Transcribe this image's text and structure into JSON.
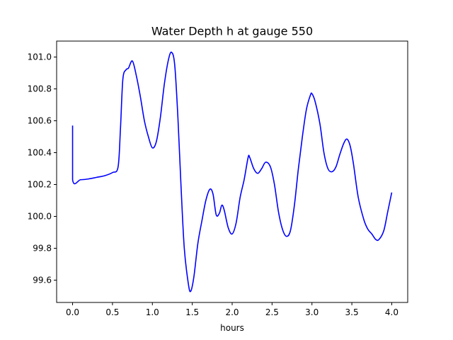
{
  "chart_data": {
    "type": "line",
    "title": "Water Depth h at gauge 550",
    "xlabel": "hours",
    "ylabel": "",
    "xlim": [
      -0.2,
      4.2
    ],
    "ylim": [
      99.46,
      101.1
    ],
    "xticks": [
      0.0,
      0.5,
      1.0,
      1.5,
      2.0,
      2.5,
      3.0,
      3.5,
      4.0
    ],
    "xtick_labels": [
      "0.0",
      "0.5",
      "1.0",
      "1.5",
      "2.0",
      "2.5",
      "3.0",
      "3.5",
      "4.0"
    ],
    "yticks": [
      99.6,
      99.8,
      100.0,
      100.2,
      100.4,
      100.6,
      100.8,
      101.0
    ],
    "ytick_labels": [
      "99.6",
      "99.8",
      "100.0",
      "100.2",
      "100.4",
      "100.6",
      "100.8",
      "101.0"
    ],
    "grid": false,
    "series": [
      {
        "color": "#0000ff",
        "points": [
          [
            0.0,
            100.57
          ],
          [
            0.0,
            100.23
          ],
          [
            0.1,
            100.23
          ],
          [
            0.2,
            100.235
          ],
          [
            0.3,
            100.245
          ],
          [
            0.4,
            100.255
          ],
          [
            0.5,
            100.275
          ],
          [
            0.57,
            100.31
          ],
          [
            0.6,
            100.55
          ],
          [
            0.63,
            100.86
          ],
          [
            0.67,
            100.92
          ],
          [
            0.7,
            100.93
          ],
          [
            0.75,
            100.975
          ],
          [
            0.8,
            100.88
          ],
          [
            0.85,
            100.75
          ],
          [
            0.9,
            100.6
          ],
          [
            0.95,
            100.5
          ],
          [
            1.0,
            100.43
          ],
          [
            1.05,
            100.47
          ],
          [
            1.1,
            100.62
          ],
          [
            1.15,
            100.83
          ],
          [
            1.2,
            100.98
          ],
          [
            1.24,
            101.03
          ],
          [
            1.28,
            100.95
          ],
          [
            1.32,
            100.62
          ],
          [
            1.36,
            100.18
          ],
          [
            1.4,
            99.8
          ],
          [
            1.45,
            99.58
          ],
          [
            1.48,
            99.53
          ],
          [
            1.52,
            99.62
          ],
          [
            1.57,
            99.83
          ],
          [
            1.62,
            99.97
          ],
          [
            1.67,
            100.1
          ],
          [
            1.72,
            100.17
          ],
          [
            1.76,
            100.14
          ],
          [
            1.8,
            100.01
          ],
          [
            1.84,
            100.02
          ],
          [
            1.87,
            100.07
          ],
          [
            1.9,
            100.04
          ],
          [
            1.95,
            99.93
          ],
          [
            2.0,
            99.89
          ],
          [
            2.05,
            99.96
          ],
          [
            2.1,
            100.12
          ],
          [
            2.15,
            100.23
          ],
          [
            2.2,
            100.37
          ],
          [
            2.22,
            100.37
          ],
          [
            2.27,
            100.3
          ],
          [
            2.32,
            100.27
          ],
          [
            2.37,
            100.3
          ],
          [
            2.42,
            100.34
          ],
          [
            2.48,
            100.31
          ],
          [
            2.53,
            100.2
          ],
          [
            2.58,
            100.03
          ],
          [
            2.63,
            99.92
          ],
          [
            2.68,
            99.875
          ],
          [
            2.73,
            99.91
          ],
          [
            2.78,
            100.07
          ],
          [
            2.83,
            100.3
          ],
          [
            2.88,
            100.5
          ],
          [
            2.93,
            100.67
          ],
          [
            2.98,
            100.76
          ],
          [
            3.0,
            100.77
          ],
          [
            3.04,
            100.72
          ],
          [
            3.1,
            100.58
          ],
          [
            3.15,
            100.4
          ],
          [
            3.2,
            100.3
          ],
          [
            3.25,
            100.28
          ],
          [
            3.3,
            100.31
          ],
          [
            3.35,
            100.39
          ],
          [
            3.4,
            100.46
          ],
          [
            3.44,
            100.485
          ],
          [
            3.48,
            100.44
          ],
          [
            3.52,
            100.33
          ],
          [
            3.58,
            100.12
          ],
          [
            3.65,
            99.98
          ],
          [
            3.7,
            99.92
          ],
          [
            3.75,
            99.89
          ],
          [
            3.8,
            99.855
          ],
          [
            3.84,
            99.855
          ],
          [
            3.9,
            99.91
          ],
          [
            3.95,
            100.03
          ],
          [
            4.0,
            100.15
          ]
        ]
      }
    ]
  }
}
